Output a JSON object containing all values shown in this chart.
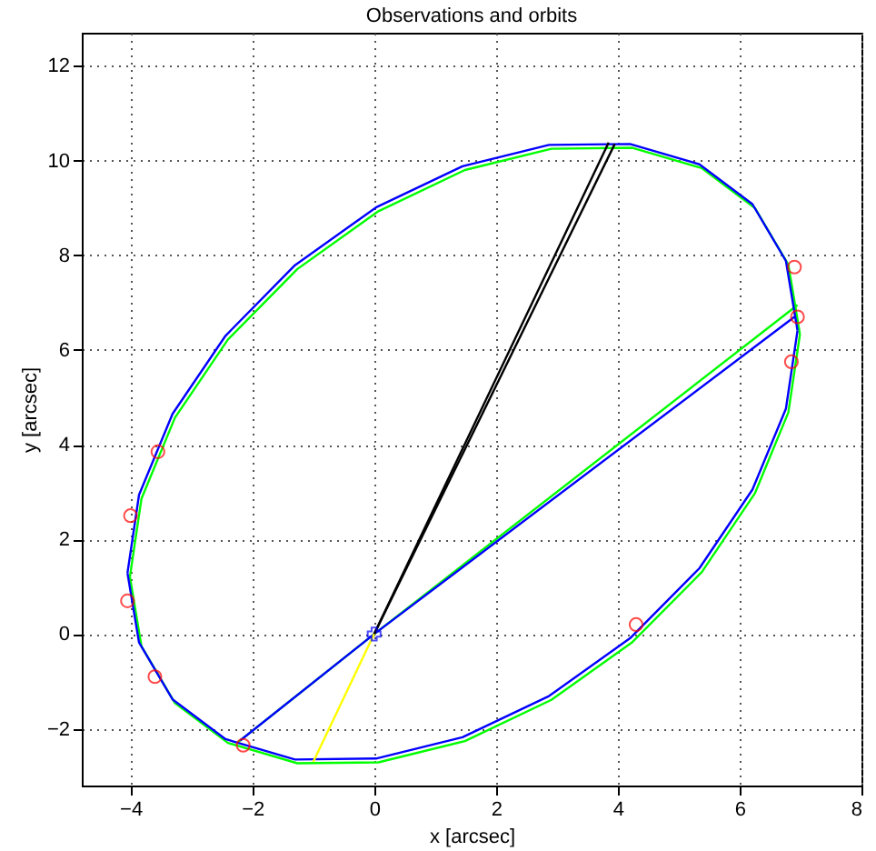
{
  "chart_data": {
    "type": "line",
    "title": "Observations and orbits",
    "xlabel": "x [arcsec]",
    "ylabel": "y [arcsec]",
    "xlim": [
      -4.8,
      8
    ],
    "ylim": [
      -3.2,
      12.7
    ],
    "xticks": [
      -4,
      -2,
      0,
      2,
      4,
      6,
      8
    ],
    "yticks": [
      -2,
      0,
      2,
      4,
      6,
      8,
      10,
      12
    ],
    "grid": true,
    "series": [
      {
        "color": "#00ff00",
        "x": [
          -4.01,
          -3.82,
          -3.27,
          -2.4,
          -1.26,
          0.07,
          1.49,
          2.91,
          4.24,
          5.38,
          6.25,
          6.8,
          6.99,
          null,
          -4.01,
          -3.82,
          -3.27,
          -2.4,
          -1.26,
          0.07,
          1.49,
          2.91,
          4.24,
          5.38,
          6.25,
          6.8,
          6.99,
          null,
          -2.25,
          0,
          6.95
        ],
        "values": [
          1.21,
          2.86,
          4.57,
          6.22,
          7.71,
          8.93,
          9.8,
          10.25,
          10.27,
          9.84,
          9.0,
          7.8,
          6.33,
          null,
          1.21,
          -0.26,
          -1.46,
          -2.3,
          -2.73,
          -2.71,
          -2.26,
          -1.39,
          -0.17,
          1.31,
          2.97,
          4.68,
          6.33,
          null,
          -2.3,
          0,
          6.95
        ]
      },
      {
        "color": "#0000ff",
        "x": [
          -4.05,
          -3.86,
          -3.31,
          -2.44,
          -1.3,
          0.03,
          1.45,
          2.87,
          4.2,
          5.34,
          6.21,
          6.76,
          6.95,
          null,
          -4.05,
          -3.86,
          -3.31,
          -2.44,
          -1.3,
          0.03,
          1.45,
          2.87,
          4.2,
          5.34,
          6.21,
          6.76,
          6.95,
          null,
          -2.2,
          0,
          6.9
        ],
        "values": [
          1.29,
          2.94,
          4.65,
          6.3,
          7.79,
          9.01,
          9.88,
          10.33,
          10.35,
          9.92,
          9.08,
          7.88,
          6.41,
          null,
          1.29,
          -0.18,
          -1.38,
          -2.22,
          -2.65,
          -2.63,
          -2.18,
          -1.31,
          -0.09,
          1.39,
          3.05,
          4.76,
          6.41,
          null,
          -2.25,
          0,
          6.7
        ]
      },
      {
        "color": "#000000",
        "x": [
          0,
          3.85
        ],
        "values": [
          0,
          10.38
        ]
      },
      {
        "color": "#000000",
        "x": [
          0,
          3.95
        ],
        "values": [
          0,
          10.35
        ]
      },
      {
        "color": "#ffff00",
        "x": [
          -1.0,
          0
        ],
        "values": [
          -2.7,
          0
        ]
      },
      {
        "type": "scatter",
        "color": "#ff0000",
        "marker": "circle",
        "x": [
          6.9,
          6.95,
          6.85,
          -3.55,
          -4.0,
          -4.05,
          -3.6,
          -2.15,
          4.3
        ],
        "values": [
          7.75,
          6.7,
          5.75,
          3.85,
          2.5,
          0.7,
          -0.9,
          -2.35,
          0.2
        ]
      },
      {
        "type": "scatter",
        "color": "#0000ff",
        "marker": "cross",
        "x": [
          0
        ],
        "values": [
          0
        ]
      }
    ]
  }
}
